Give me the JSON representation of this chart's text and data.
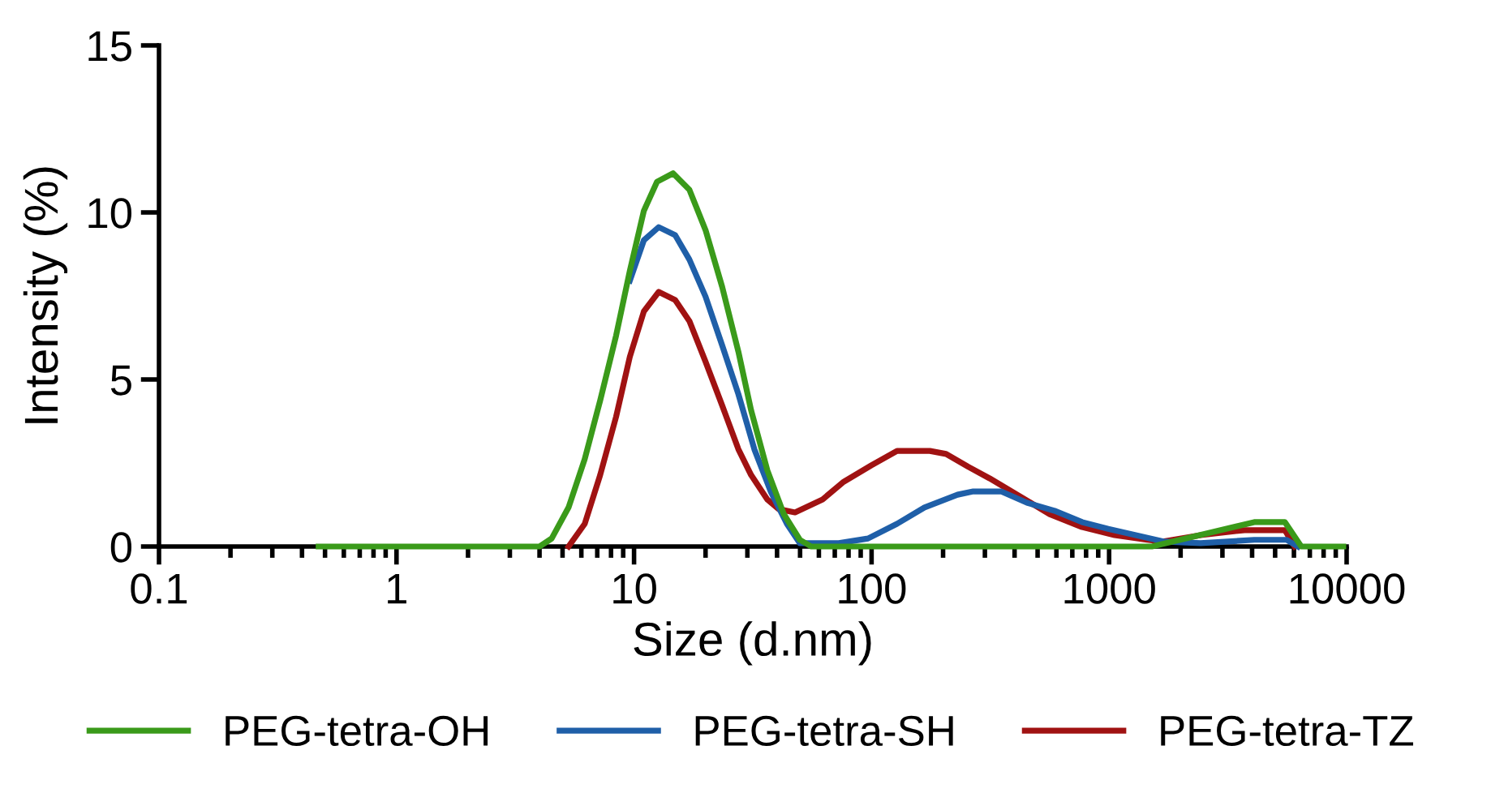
{
  "chart_data": {
    "type": "line",
    "xlabel": "Size (d.nm)",
    "ylabel": "Intensity (%)",
    "log": "x",
    "xlim": [
      0.1,
      10000
    ],
    "xticks": [
      0.1,
      1,
      10,
      100,
      1000,
      10000
    ],
    "ylim": [
      0,
      15
    ],
    "yticks": [
      0,
      5,
      10,
      15
    ],
    "grid": false,
    "legend": "bottom",
    "marker": "none",
    "line_style": "solid",
    "series": [
      {
        "name": "PEG-tetra-OH",
        "color": "#3a9a1a",
        "x": [
          0.47,
          3.3,
          4.0,
          4.5,
          5.3,
          6.2,
          7.2,
          8.4,
          9.6,
          11.0,
          12.5,
          14.6,
          17.1,
          20.0,
          23.5,
          27.5,
          31.1,
          36.4,
          42.7,
          49.9,
          55.7,
          1514,
          4083,
          5500,
          6442,
          9680
        ],
        "values": [
          0,
          0,
          0,
          0.24,
          1.17,
          2.62,
          4.37,
          6.31,
          8.25,
          10.05,
          10.92,
          11.17,
          10.68,
          9.47,
          7.77,
          5.83,
          4.08,
          2.28,
          0.97,
          0.2,
          0,
          0,
          0.73,
          0.73,
          0,
          0
        ]
      },
      {
        "name": "PEG-tetra-SH",
        "color": "#1f5fa8",
        "x": [
          9.6,
          11.0,
          12.7,
          14.9,
          17.1,
          20.0,
          23.5,
          27.5,
          32.1,
          37.6,
          44.0,
          49.9,
          72.8,
          96.6,
          128,
          167,
          230,
          268,
          351,
          451,
          589,
          770,
          991,
          1294,
          1690,
          2427,
          4083,
          5585,
          6237
        ],
        "values": [
          7.96,
          9.17,
          9.56,
          9.32,
          8.59,
          7.48,
          6.02,
          4.56,
          2.91,
          1.65,
          0.68,
          0.1,
          0.1,
          0.24,
          0.68,
          1.17,
          1.55,
          1.65,
          1.65,
          1.31,
          1.07,
          0.73,
          0.53,
          0.34,
          0.15,
          0.1,
          0.2,
          0.2,
          0
        ]
      },
      {
        "name": "PEG-tetra-TZ",
        "color": "#a01212",
        "x": [
          5.3,
          6.2,
          7.2,
          8.4,
          9.6,
          11.0,
          12.7,
          14.9,
          17.1,
          20.0,
          23.5,
          27.5,
          31.1,
          36.4,
          40.6,
          47.6,
          62.2,
          76.4,
          99.8,
          128,
          176,
          206,
          256,
          314,
          410,
          562,
          770,
          1055,
          1445,
          1690,
          2427,
          3715,
          5500,
          6040
        ],
        "values": [
          0,
          0.68,
          2.14,
          3.88,
          5.68,
          7.04,
          7.62,
          7.38,
          6.75,
          5.53,
          4.22,
          2.91,
          2.14,
          1.41,
          1.12,
          1.02,
          1.41,
          1.94,
          2.43,
          2.86,
          2.86,
          2.77,
          2.38,
          2.04,
          1.55,
          0.97,
          0.58,
          0.34,
          0.2,
          0.15,
          0.34,
          0.49,
          0.49,
          0
        ]
      }
    ]
  }
}
